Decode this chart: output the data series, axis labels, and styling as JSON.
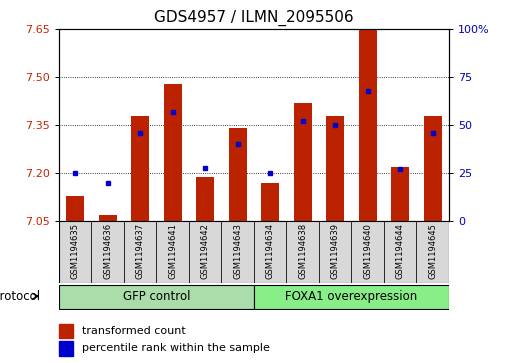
{
  "title": "GDS4957 / ILMN_2095506",
  "samples": [
    "GSM1194635",
    "GSM1194636",
    "GSM1194637",
    "GSM1194641",
    "GSM1194642",
    "GSM1194643",
    "GSM1194634",
    "GSM1194638",
    "GSM1194639",
    "GSM1194640",
    "GSM1194644",
    "GSM1194645"
  ],
  "transformed_count": [
    7.13,
    7.07,
    7.38,
    7.48,
    7.19,
    7.34,
    7.17,
    7.42,
    7.38,
    7.65,
    7.22,
    7.38
  ],
  "percentile_rank": [
    25,
    20,
    46,
    57,
    28,
    40,
    25,
    52,
    50,
    68,
    27,
    46
  ],
  "ylim_left": [
    7.05,
    7.65
  ],
  "ylim_right": [
    0,
    100
  ],
  "yticks_left": [
    7.05,
    7.2,
    7.35,
    7.5,
    7.65
  ],
  "yticks_right": [
    0,
    25,
    50,
    75,
    100
  ],
  "groups": [
    {
      "label": "GFP control",
      "start": 0,
      "end": 5,
      "color": "#aaddaa"
    },
    {
      "label": "FOXA1 overexpression",
      "start": 6,
      "end": 11,
      "color": "#88ee88"
    }
  ],
  "bar_color": "#bb2200",
  "dot_color": "#0000cc",
  "baseline": 7.05,
  "bar_width": 0.55,
  "panel_bg": "#ffffff",
  "cell_bg": "#d8d8d8",
  "legend_red_label": "transformed count",
  "legend_blue_label": "percentile rank within the sample",
  "protocol_label": "protocol",
  "left_tick_color": "#cc2200",
  "right_tick_color": "#0000bb",
  "title_fontsize": 11,
  "tick_fontsize": 8,
  "sample_fontsize": 6,
  "group_fontsize": 8.5,
  "legend_fontsize": 8
}
